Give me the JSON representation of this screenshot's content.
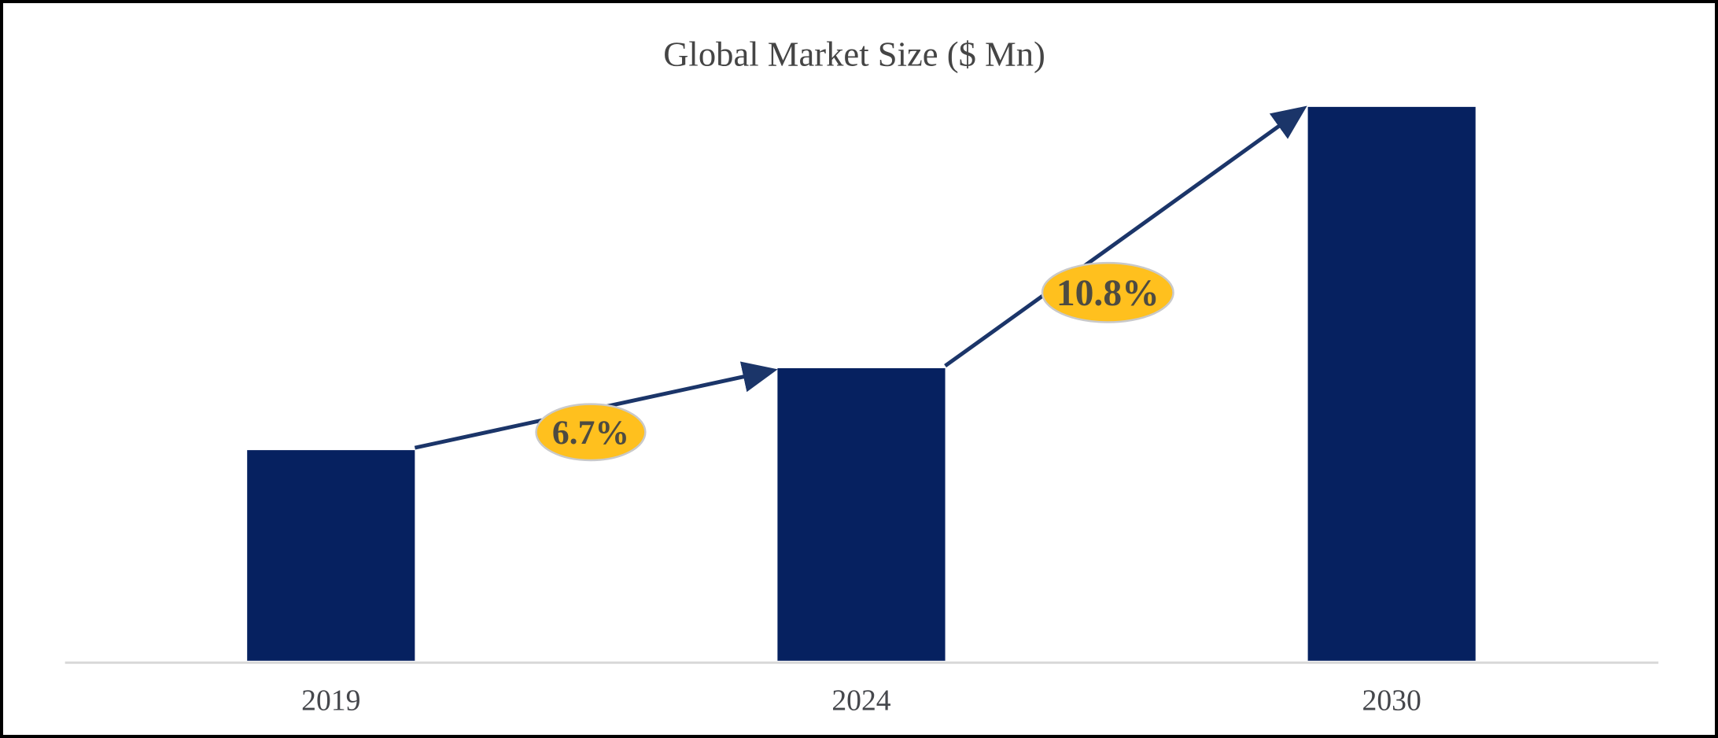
{
  "chart_data": {
    "type": "bar",
    "title": "Global Market Size ($ Mn)",
    "categories": [
      "2019",
      "2024",
      "2030"
    ],
    "values": [
      270,
      375,
      710
    ],
    "values_note": "y-axis unlabeled; values are relative bar heights read from pixels",
    "xlabel": "",
    "ylabel": "",
    "y_axis_visible": false,
    "gridlines": false,
    "legend": false,
    "bar_color": "#062160",
    "arrow_color": "#1B3569",
    "axis_line_color": "#D8D8D8",
    "title_color": "#454545",
    "tick_label_color": "#45474C",
    "annotations": [
      {
        "label": "6.7%",
        "between": [
          "2019",
          "2024"
        ],
        "shape": "ellipse",
        "fill": "#FFC01E",
        "stroke": "#C9C9C9",
        "text_color": "#4D4B42"
      },
      {
        "label": "10.8%",
        "between": [
          "2024",
          "2030"
        ],
        "shape": "ellipse",
        "fill": "#FFC01E",
        "stroke": "#C9C9C9",
        "text_color": "#4D4B42"
      }
    ]
  }
}
